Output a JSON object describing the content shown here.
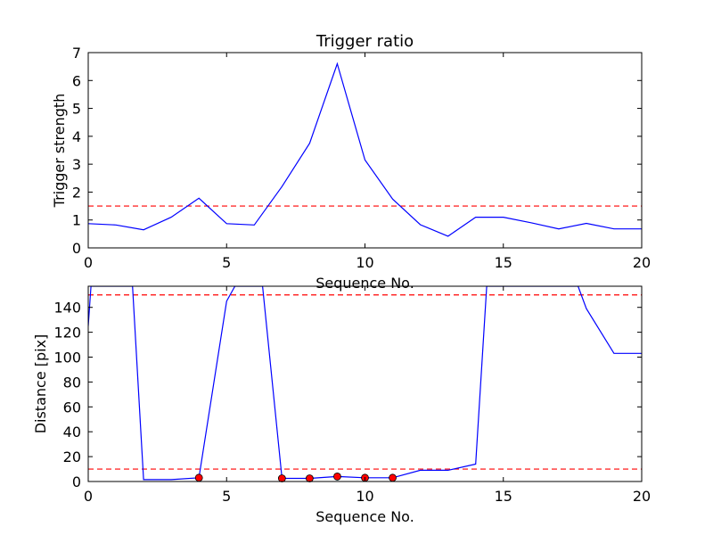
{
  "colors": {
    "line": "#0000ff",
    "threshold": "#ff0000",
    "marker": "#ff0000",
    "axes": "#000000"
  },
  "chart_data": [
    {
      "type": "line",
      "title": "Trigger ratio",
      "xlabel": "Sequence No.",
      "ylabel": "Trigger strength",
      "xlim": [
        0,
        20
      ],
      "ylim": [
        0,
        7
      ],
      "xticks": [
        0,
        5,
        10,
        15,
        20
      ],
      "yticks": [
        0,
        1,
        2,
        3,
        4,
        5,
        6,
        7
      ],
      "grid": false,
      "series": [
        {
          "x": [
            0,
            1,
            2,
            3,
            4,
            5,
            6,
            7,
            8,
            9,
            10,
            11,
            12,
            13,
            14,
            15,
            16,
            17,
            18,
            19,
            20
          ],
          "values": [
            0.87,
            0.82,
            0.65,
            1.1,
            1.78,
            0.87,
            0.82,
            2.2,
            3.75,
            6.6,
            3.15,
            1.75,
            0.83,
            0.42,
            1.1,
            1.1,
            0.9,
            0.68,
            0.88,
            0.68,
            0.68
          ]
        }
      ],
      "hlines": [
        1.5
      ]
    },
    {
      "type": "line",
      "title": "",
      "xlabel": "Sequence No.",
      "ylabel": "Distance [pix]",
      "xlim": [
        0,
        20
      ],
      "ylim": [
        0,
        157
      ],
      "xticks": [
        0,
        5,
        10,
        15,
        20
      ],
      "yticks": [
        0,
        20,
        40,
        60,
        80,
        100,
        120,
        140
      ],
      "grid": false,
      "series": [
        {
          "x": [
            0,
            0.1,
            1.6,
            2,
            3,
            4,
            5,
            5.3,
            6.3,
            7,
            8,
            9,
            10,
            11,
            12,
            13,
            14,
            14.4,
            17.7,
            18,
            19,
            20
          ],
          "values": [
            125,
            157,
            157,
            1.5,
            1.5,
            3,
            145,
            157,
            157,
            2.5,
            2.5,
            4,
            3,
            3,
            9,
            9,
            14,
            157,
            157,
            139,
            103,
            103
          ]
        }
      ],
      "markers": {
        "x": [
          4,
          7,
          8,
          9,
          10,
          11
        ],
        "values": [
          3,
          2.5,
          2.5,
          4,
          3,
          3
        ]
      },
      "hlines": [
        150,
        10
      ]
    }
  ]
}
